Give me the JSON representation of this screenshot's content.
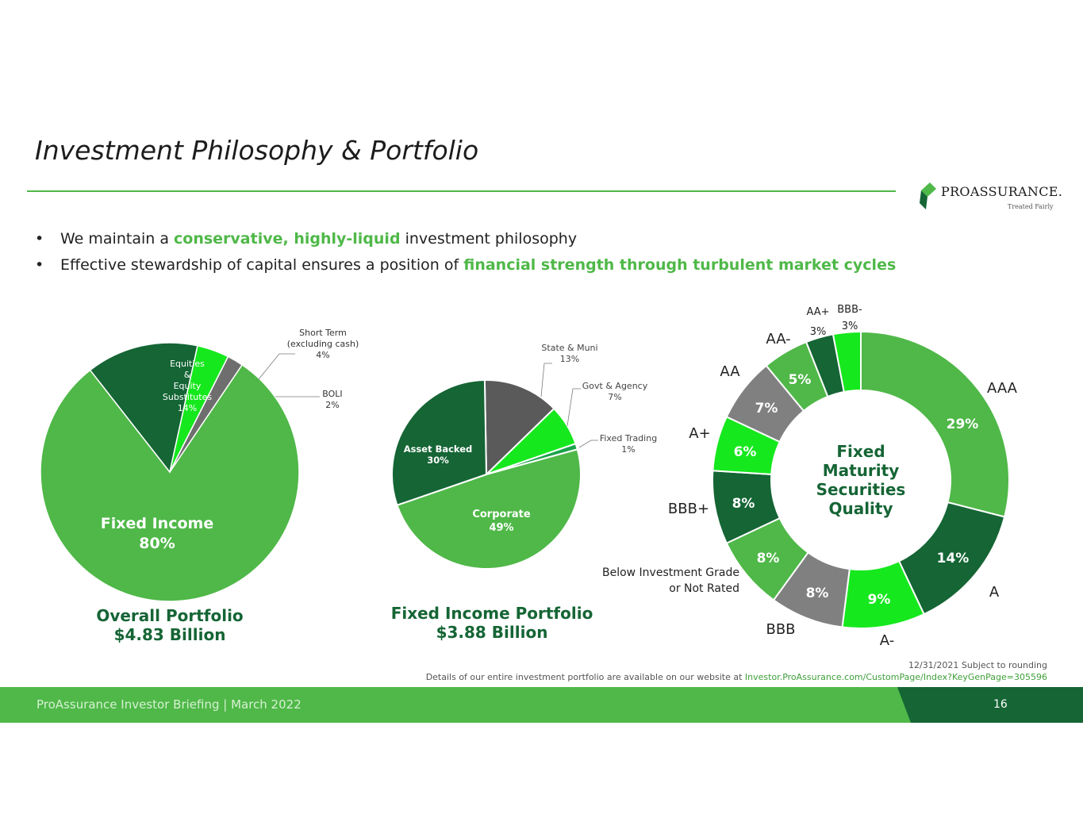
{
  "slide": {
    "title": "Investment Philosophy & Portfolio",
    "bullets": [
      {
        "before": "We maintain a ",
        "highlight": "conservative, highly-liquid",
        "after": " investment philosophy"
      },
      {
        "before": "Effective stewardship of capital ensures a position of ",
        "highlight": "financial strength through turbulent market cycles",
        "after": ""
      }
    ],
    "bullet_symbol": "•"
  },
  "logo": {
    "name": "PROASSURANCE.",
    "tagline": "Treated Fairly"
  },
  "notes": {
    "line1": "12/31/2021 Subject to rounding",
    "line2_prefix": "Details of our entire investment portfolio are available on our website at ",
    "line2_link": "Investor.ProAssurance.com/CustomPage/Index?KeyGenPage=305596"
  },
  "footer": {
    "text": "ProAssurance Investor Briefing | March 2022",
    "page": "16"
  },
  "colors": {
    "green": "#4fb848",
    "dark_green": "#156535",
    "bright_green": "#16e81e",
    "gray": "#808080",
    "dark_gray": "#5a5a5a"
  },
  "chart_data": [
    {
      "type": "pie",
      "caption_line1": "Overall Portfolio",
      "caption_line2": "$4.83 Billion",
      "slices": [
        {
          "label_lines": [
            "Fixed Income",
            "80%"
          ],
          "value": 80,
          "color": "#4fb848"
        },
        {
          "label_lines": [
            "Equities",
            "&",
            "Equity",
            "Substitutes",
            "14%"
          ],
          "value": 14,
          "color": "#156535"
        },
        {
          "label_lines": [
            "Short Term",
            "(excluding cash)",
            "4%"
          ],
          "value": 4,
          "color": "#16e81e"
        },
        {
          "label_lines": [
            "BOLI",
            "2%"
          ],
          "value": 2,
          "color": "#6e6e6e"
        }
      ]
    },
    {
      "type": "pie",
      "caption_line1": "Fixed Income Portfolio",
      "caption_line2": "$3.88 Billion",
      "slices": [
        {
          "label_lines": [
            "Corporate",
            "49%"
          ],
          "value": 49,
          "color": "#4fb848"
        },
        {
          "label_lines": [
            "Asset Backed",
            "30%"
          ],
          "value": 30,
          "color": "#156535"
        },
        {
          "label_lines": [
            "State & Muni",
            "13%"
          ],
          "value": 13,
          "color": "#5a5a5a"
        },
        {
          "label_lines": [
            "Govt & Agency",
            "7%"
          ],
          "value": 7,
          "color": "#16e81e"
        },
        {
          "label_lines": [
            "Fixed Trading",
            "1%"
          ],
          "value": 1,
          "color": "#1aa34a"
        }
      ]
    },
    {
      "type": "donut",
      "center_lines": [
        "Fixed",
        "Maturity",
        "Securities",
        "Quality"
      ],
      "slices": [
        {
          "name": "AAA",
          "pct": "29%",
          "value": 29,
          "color": "#4fb848"
        },
        {
          "name": "A",
          "pct": "14%",
          "value": 14,
          "color": "#156535"
        },
        {
          "name": "A-",
          "pct": "9%",
          "value": 9,
          "color": "#16e81e"
        },
        {
          "name": "BBB",
          "pct": "8%",
          "value": 8,
          "color": "#808080"
        },
        {
          "name": "Below Investment Grade or Not Rated",
          "name_lines": [
            "Below Investment Grade",
            "or Not Rated"
          ],
          "pct": "8%",
          "value": 8,
          "color": "#4fb848"
        },
        {
          "name": "BBB+",
          "pct": "8%",
          "value": 8,
          "color": "#156535"
        },
        {
          "name": "A+",
          "pct": "6%",
          "value": 6,
          "color": "#16e81e"
        },
        {
          "name": "AA",
          "pct": "7%",
          "value": 7,
          "color": "#808080"
        },
        {
          "name": "AA-",
          "pct": "5%",
          "value": 5,
          "color": "#4fb848"
        },
        {
          "name": "AA+",
          "pct": "3%",
          "value": 3,
          "color": "#156535"
        },
        {
          "name": "BBB-",
          "pct": "3%",
          "value": 3,
          "color": "#16e81e"
        }
      ]
    }
  ]
}
